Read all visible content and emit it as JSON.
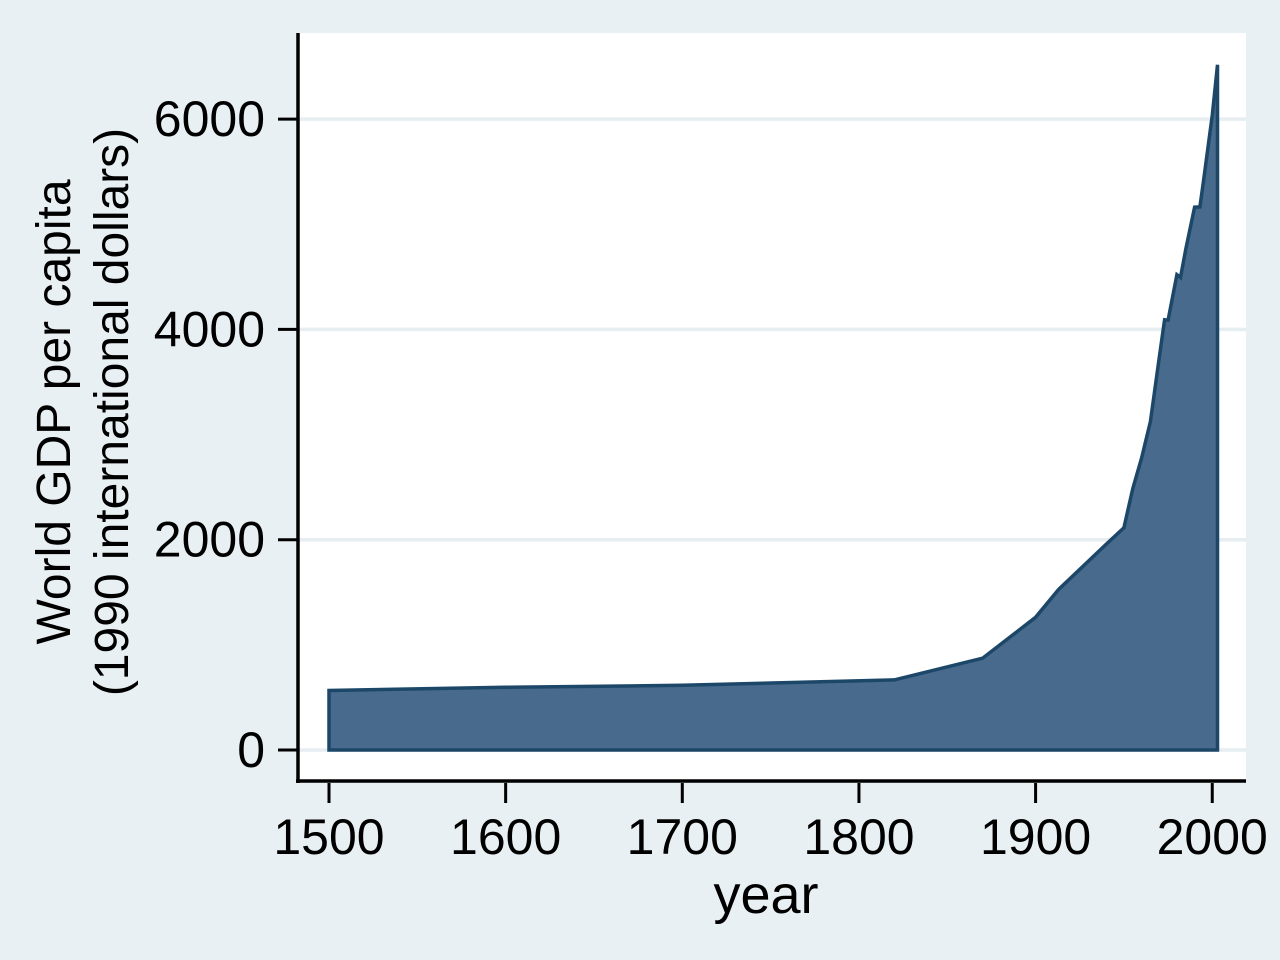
{
  "window": {
    "outer_background": "#E9F0F3"
  },
  "chart_data": {
    "type": "area",
    "title": "",
    "xlabel": "year",
    "ylabel_lines": [
      "World GDP per capita",
      "(1990 international dollars)"
    ],
    "x_ticks": [
      1500,
      1600,
      1700,
      1800,
      1900,
      2000
    ],
    "y_ticks": [
      0,
      2000,
      4000,
      6000
    ],
    "xlim": [
      1500,
      2003
    ],
    "ylim": [
      0,
      6516
    ],
    "grid": true,
    "legend_position": "none",
    "colors": {
      "area_fill": "#486A8C",
      "area_line": "#1D4768",
      "gridline": "#E6EEF2",
      "axis": "#000000",
      "plot_background": "#FFFFFF",
      "outer_background": "#E9F0F3"
    },
    "series": [
      {
        "name": "World GDP per capita (1990 international dollars)",
        "points": [
          [
            1500,
            566
          ],
          [
            1600,
            596
          ],
          [
            1700,
            615
          ],
          [
            1820,
            667
          ],
          [
            1870,
            873
          ],
          [
            1900,
            1262
          ],
          [
            1913,
            1526
          ],
          [
            1940,
            1958
          ],
          [
            1950,
            2113
          ],
          [
            1955,
            2487
          ],
          [
            1960,
            2777
          ],
          [
            1965,
            3123
          ],
          [
            1970,
            3736
          ],
          [
            1973,
            4091
          ],
          [
            1975,
            4088
          ],
          [
            1980,
            4520
          ],
          [
            1982,
            4495
          ],
          [
            1985,
            4764
          ],
          [
            1990,
            5162
          ],
          [
            1993,
            5165
          ],
          [
            1995,
            5404
          ],
          [
            2000,
            6038
          ],
          [
            2003,
            6516
          ]
        ]
      }
    ]
  }
}
